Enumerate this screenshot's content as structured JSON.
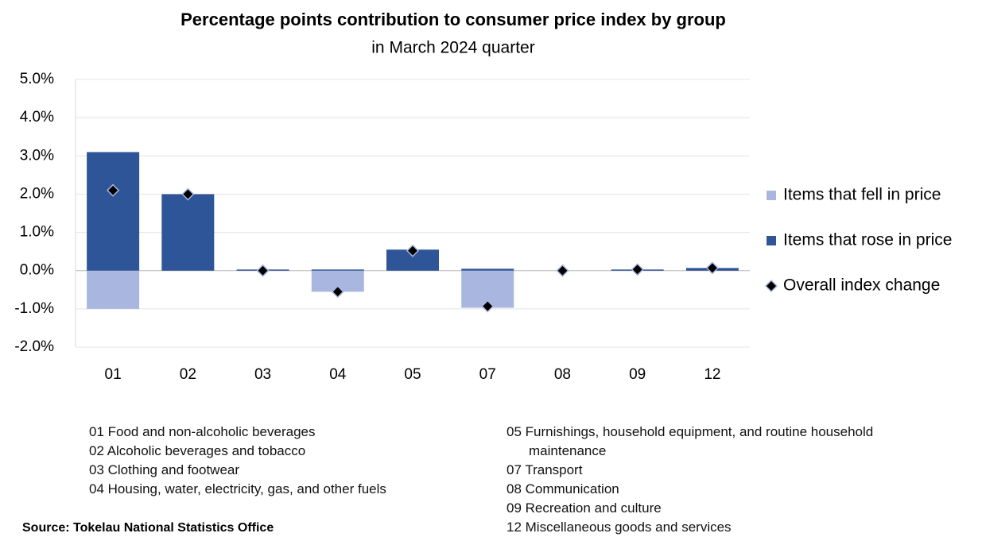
{
  "chart_data": {
    "type": "bar",
    "title": "Percentage points contribution to consumer price index by group",
    "subtitle": "in March 2024 quarter",
    "categories": [
      "01",
      "02",
      "03",
      "04",
      "05",
      "07",
      "08",
      "09",
      "12"
    ],
    "series": [
      {
        "name": "Items that fell in price",
        "color": "#a9b6e0",
        "values": [
          -1.0,
          0,
          0,
          -0.55,
          0,
          -0.97,
          0,
          0,
          0
        ]
      },
      {
        "name": "Items that rose in price",
        "color": "#2e5597",
        "values": [
          3.1,
          2.0,
          0.03,
          0.03,
          0.55,
          0.05,
          0,
          0.03,
          0.07
        ]
      },
      {
        "name": "Overall index change",
        "type": "scatter",
        "color": "#000000",
        "values": [
          2.1,
          2.0,
          0.0,
          -0.55,
          0.52,
          -0.93,
          0.0,
          0.03,
          0.07
        ]
      }
    ],
    "ylim": [
      -2,
      5
    ],
    "yticks": [
      {
        "value": -2,
        "label": "-2.0%"
      },
      {
        "value": -1,
        "label": "-1.0%"
      },
      {
        "value": 0,
        "label": "0.0%"
      },
      {
        "value": 1,
        "label": "1.0%"
      },
      {
        "value": 2,
        "label": "2.0%"
      },
      {
        "value": 3,
        "label": "3.0%"
      },
      {
        "value": 4,
        "label": "4.0%"
      },
      {
        "value": 5,
        "label": "5.0%"
      }
    ],
    "grid": true,
    "legend": "right",
    "notes_left": [
      "01 Food and non-alcoholic beverages",
      "02 Alcoholic beverages and tobacco",
      "03 Clothing and footwear",
      "04 Housing, water, electricity, gas, and other fuels"
    ],
    "notes_right": [
      "05 Furnishings, household equipment, and routine household maintenance",
      "07 Transport",
      "08 Communication",
      "09 Recreation and culture",
      "12 Miscellaneous goods and services"
    ],
    "source": "Source: Tokelau National Statistics Office"
  }
}
